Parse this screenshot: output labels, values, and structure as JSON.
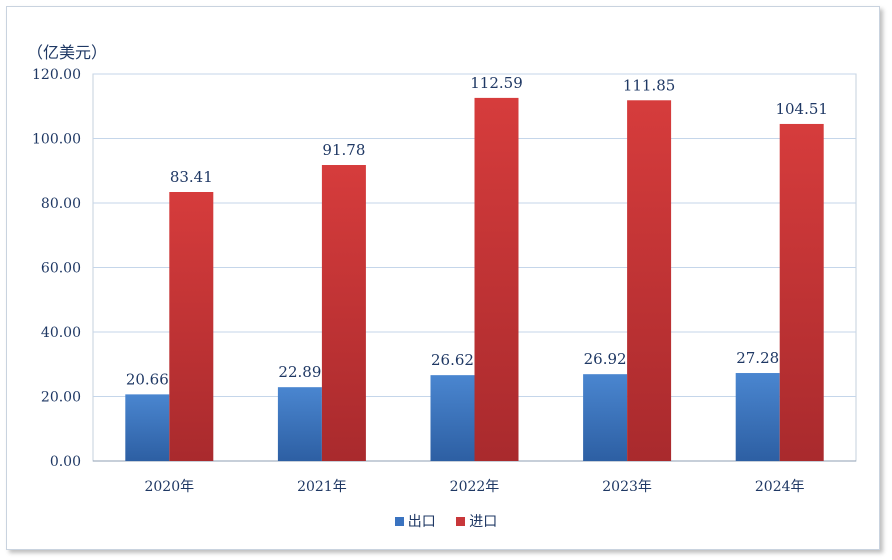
{
  "chart_data": {
    "type": "bar",
    "unit_label": "（亿美元）",
    "categories": [
      "2020年",
      "2021年",
      "2022年",
      "2023年",
      "2024年"
    ],
    "series": [
      {
        "name": "出口",
        "values": [
          20.66,
          22.89,
          26.62,
          26.92,
          27.28
        ],
        "labels": [
          "20.66",
          "22.89",
          "26.62",
          "26.92",
          "27.28"
        ],
        "color": "#3a73c0"
      },
      {
        "name": "进口",
        "values": [
          83.41,
          91.78,
          112.59,
          111.85,
          104.51
        ],
        "labels": [
          "83.41",
          "91.78",
          "112.59",
          "111.85",
          "104.51"
        ],
        "color": "#c8373a"
      }
    ],
    "yticks": [
      "0.00",
      "20.00",
      "40.00",
      "60.00",
      "80.00",
      "100.00",
      "120.00"
    ],
    "ylim": [
      0,
      120
    ],
    "grid": true,
    "legend_position": "bottom"
  }
}
